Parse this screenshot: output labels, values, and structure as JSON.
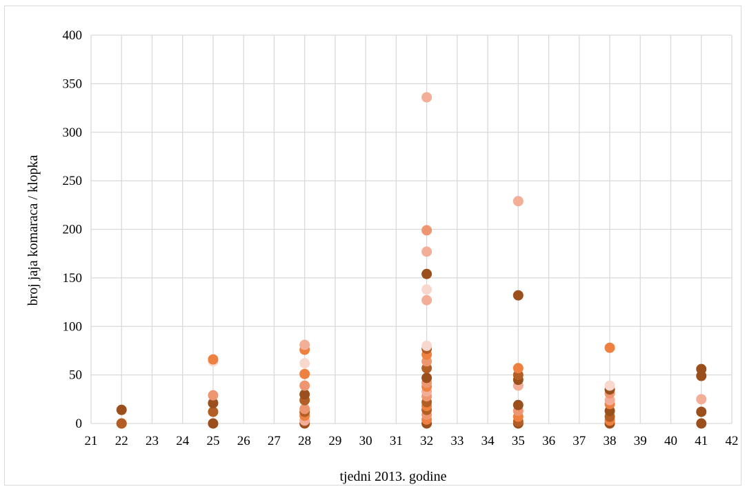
{
  "chart_data": {
    "type": "scatter",
    "title": "",
    "xlabel": "tjedni 2013. godine",
    "ylabel": "broj jaja komaraca / klopka",
    "xlim": [
      21,
      42
    ],
    "ylim": [
      0,
      400
    ],
    "x_ticks": [
      "21",
      "22",
      "23",
      "24",
      "25",
      "26",
      "27",
      "28",
      "29",
      "30",
      "31",
      "32",
      "33",
      "34",
      "35",
      "36",
      "37",
      "38",
      "39",
      "40",
      "41",
      "42"
    ],
    "y_ticks": [
      "0",
      "50",
      "100",
      "150",
      "200",
      "250",
      "300",
      "350",
      "400"
    ],
    "grid": true,
    "legend": "none",
    "colors": {
      "light": "#f8d8cc",
      "salmon": "#f3ae98",
      "coral": "#ee9670",
      "orange": "#ee8040",
      "brown": "#b25e25",
      "dark": "#9a4f1d",
      "grid": "#d9d9d9"
    },
    "points": [
      {
        "x": 22,
        "y": 0,
        "c": "orange"
      },
      {
        "x": 22,
        "y": 0,
        "c": "brown"
      },
      {
        "x": 22,
        "y": 14,
        "c": "dark"
      },
      {
        "x": 25,
        "y": 0,
        "c": "salmon"
      },
      {
        "x": 25,
        "y": 0,
        "c": "dark"
      },
      {
        "x": 25,
        "y": 12,
        "c": "brown"
      },
      {
        "x": 25,
        "y": 21,
        "c": "dark"
      },
      {
        "x": 25,
        "y": 29,
        "c": "coral"
      },
      {
        "x": 25,
        "y": 64,
        "c": "light"
      },
      {
        "x": 25,
        "y": 66,
        "c": "orange"
      },
      {
        "x": 28,
        "y": 0,
        "c": "dark"
      },
      {
        "x": 28,
        "y": 3,
        "c": "salmon"
      },
      {
        "x": 28,
        "y": 8,
        "c": "orange"
      },
      {
        "x": 28,
        "y": 12,
        "c": "brown"
      },
      {
        "x": 28,
        "y": 15,
        "c": "coral"
      },
      {
        "x": 28,
        "y": 24,
        "c": "brown"
      },
      {
        "x": 28,
        "y": 30,
        "c": "dark"
      },
      {
        "x": 28,
        "y": 39,
        "c": "coral"
      },
      {
        "x": 28,
        "y": 51,
        "c": "orange"
      },
      {
        "x": 28,
        "y": 62,
        "c": "light"
      },
      {
        "x": 28,
        "y": 76,
        "c": "orange"
      },
      {
        "x": 28,
        "y": 81,
        "c": "salmon"
      },
      {
        "x": 32,
        "y": 0,
        "c": "dark"
      },
      {
        "x": 32,
        "y": 4,
        "c": "orange"
      },
      {
        "x": 32,
        "y": 9,
        "c": "coral"
      },
      {
        "x": 32,
        "y": 14,
        "c": "brown"
      },
      {
        "x": 32,
        "y": 18,
        "c": "orange"
      },
      {
        "x": 32,
        "y": 22,
        "c": "brown"
      },
      {
        "x": 32,
        "y": 28,
        "c": "coral"
      },
      {
        "x": 32,
        "y": 33,
        "c": "salmon"
      },
      {
        "x": 32,
        "y": 38,
        "c": "orange"
      },
      {
        "x": 32,
        "y": 42,
        "c": "coral"
      },
      {
        "x": 32,
        "y": 47,
        "c": "dark"
      },
      {
        "x": 32,
        "y": 57,
        "c": "brown"
      },
      {
        "x": 32,
        "y": 64,
        "c": "coral"
      },
      {
        "x": 32,
        "y": 71,
        "c": "orange"
      },
      {
        "x": 32,
        "y": 77,
        "c": "brown"
      },
      {
        "x": 32,
        "y": 80,
        "c": "light"
      },
      {
        "x": 32,
        "y": 127,
        "c": "salmon"
      },
      {
        "x": 32,
        "y": 138,
        "c": "light"
      },
      {
        "x": 32,
        "y": 154,
        "c": "dark"
      },
      {
        "x": 32,
        "y": 177,
        "c": "salmon"
      },
      {
        "x": 32,
        "y": 199,
        "c": "coral"
      },
      {
        "x": 32,
        "y": 336,
        "c": "salmon"
      },
      {
        "x": 35,
        "y": 0,
        "c": "dark"
      },
      {
        "x": 35,
        "y": 2,
        "c": "brown"
      },
      {
        "x": 35,
        "y": 7,
        "c": "orange"
      },
      {
        "x": 35,
        "y": 13,
        "c": "coral"
      },
      {
        "x": 35,
        "y": 19,
        "c": "dark"
      },
      {
        "x": 35,
        "y": 39,
        "c": "salmon"
      },
      {
        "x": 35,
        "y": 45,
        "c": "dark"
      },
      {
        "x": 35,
        "y": 50,
        "c": "brown"
      },
      {
        "x": 35,
        "y": 57,
        "c": "orange"
      },
      {
        "x": 35,
        "y": 132,
        "c": "dark"
      },
      {
        "x": 35,
        "y": 229,
        "c": "salmon"
      },
      {
        "x": 38,
        "y": 0,
        "c": "dark"
      },
      {
        "x": 38,
        "y": 3,
        "c": "orange"
      },
      {
        "x": 38,
        "y": 7,
        "c": "brown"
      },
      {
        "x": 38,
        "y": 13,
        "c": "dark"
      },
      {
        "x": 38,
        "y": 20,
        "c": "orange"
      },
      {
        "x": 38,
        "y": 24,
        "c": "salmon"
      },
      {
        "x": 38,
        "y": 31,
        "c": "coral"
      },
      {
        "x": 38,
        "y": 35,
        "c": "dark"
      },
      {
        "x": 38,
        "y": 39,
        "c": "light"
      },
      {
        "x": 38,
        "y": 78,
        "c": "orange"
      },
      {
        "x": 41,
        "y": 0,
        "c": "dark"
      },
      {
        "x": 41,
        "y": 12,
        "c": "dark"
      },
      {
        "x": 41,
        "y": 25,
        "c": "salmon"
      },
      {
        "x": 41,
        "y": 49,
        "c": "dark"
      },
      {
        "x": 41,
        "y": 56,
        "c": "dark"
      }
    ]
  }
}
